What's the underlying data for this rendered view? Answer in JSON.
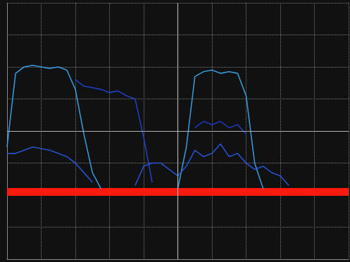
{
  "chart_data": {
    "type": "line",
    "x": [
      0,
      0.25,
      0.5,
      0.75,
      1,
      1.25,
      1.5,
      1.75,
      2,
      2.25,
      2.5,
      2.75,
      3,
      3.25,
      3.5,
      3.75,
      4,
      4.25,
      4.5,
      4.75,
      5,
      5.25,
      5.5,
      5.75,
      6,
      6.25,
      6.5,
      6.75,
      7,
      7.25,
      7.5,
      7.75,
      8,
      8.25,
      8.5,
      8.75,
      9,
      9.25,
      9.5,
      9.75,
      10
    ],
    "series": [
      {
        "color": "#3aa6ec",
        "line_style": "solid",
        "values": [
          3.5,
          5.8,
          6.0,
          6.05,
          6.0,
          5.95,
          6.0,
          5.9,
          5.3,
          3.9,
          2.7,
          2.2,
          null,
          null,
          null,
          null,
          null,
          null,
          null,
          null,
          2.2,
          3.5,
          5.7,
          5.85,
          5.9,
          5.8,
          5.85,
          5.8,
          5.1,
          3.0,
          2.2,
          null,
          null,
          null,
          null,
          null,
          null,
          null,
          null,
          null,
          null
        ]
      },
      {
        "color": "#2244d6",
        "line_style": "solid",
        "values": [
          null,
          null,
          null,
          null,
          null,
          null,
          null,
          null,
          5.6,
          5.4,
          5.35,
          5.3,
          5.2,
          5.25,
          5.1,
          5.0,
          3.8,
          2.4,
          null,
          null,
          null,
          null,
          null,
          null,
          null,
          null,
          null,
          null,
          null,
          null,
          null,
          null,
          null,
          null,
          null,
          null,
          null,
          null,
          null,
          null,
          null
        ]
      },
      {
        "color": "#2a58e0",
        "line_style": "solid",
        "values": [
          3.3,
          3.3,
          3.4,
          3.5,
          3.45,
          3.4,
          3.3,
          3.2,
          3.0,
          2.7,
          2.4,
          null,
          null,
          null,
          null,
          2.3,
          2.9,
          3.0,
          3.0,
          2.8,
          2.6,
          2.9,
          3.4,
          3.2,
          3.3,
          3.6,
          3.2,
          3.3,
          3.0,
          2.8,
          2.9,
          2.7,
          2.6,
          2.3,
          null,
          null,
          null,
          null,
          null,
          null,
          null
        ]
      },
      {
        "color": "#1f3cc8",
        "line_style": "solid",
        "values": [
          null,
          null,
          null,
          null,
          null,
          null,
          null,
          null,
          null,
          null,
          null,
          null,
          null,
          null,
          null,
          null,
          null,
          null,
          null,
          null,
          null,
          null,
          4.1,
          4.3,
          4.2,
          4.3,
          4.1,
          4.2,
          3.9,
          null,
          null,
          null,
          null,
          null,
          null,
          null,
          null,
          null,
          null,
          null,
          null
        ]
      },
      {
        "color": "#ff1a10",
        "line_style": "thick",
        "values": [
          2.1,
          2.1,
          2.1,
          2.1,
          2.1,
          2.1,
          2.1,
          2.1,
          2.1,
          2.1,
          2.1,
          2.1,
          2.1,
          2.1,
          2.1,
          2.1,
          2.1,
          2.1,
          2.1,
          2.1,
          2.1,
          2.1,
          2.1,
          2.1,
          2.1,
          2.1,
          2.1,
          2.1,
          2.1,
          2.1,
          2.1,
          2.1,
          2.1,
          2.1,
          2.1,
          2.1,
          2.1,
          2.1,
          2.1,
          2.1,
          2.1
        ]
      }
    ],
    "xlim": [
      0,
      10
    ],
    "xticks": [
      0,
      1,
      2,
      3,
      4,
      5,
      6,
      7,
      8,
      9,
      10
    ],
    "ylim": [
      0,
      8
    ],
    "yticks": [
      0,
      1,
      2,
      3,
      4,
      5,
      6,
      7,
      8
    ],
    "grid": true,
    "tick_labels": false
  }
}
